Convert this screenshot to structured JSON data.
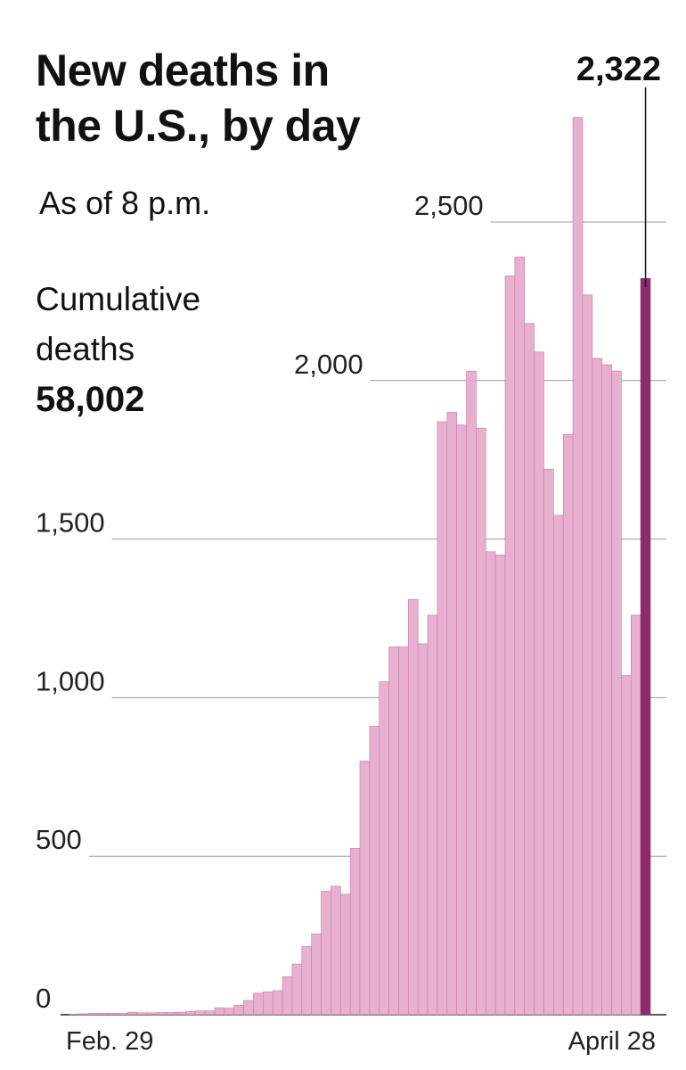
{
  "header": {
    "title_line1": "New deaths in",
    "title_line2": "the U.S., by day",
    "subtitle": "As of 8 p.m."
  },
  "summary": {
    "label_line1": "Cumulative",
    "label_line2": "deaths",
    "value": "58,002"
  },
  "colors": {
    "bar": "#e7b0cf",
    "bar_stroke": "#c77aa6",
    "highlight": "#8e2a6c",
    "grid": "#999999"
  },
  "chart_data": {
    "type": "bar",
    "title": "New deaths in the U.S., by day",
    "x_start_label": "Feb. 29",
    "x_end_label": "April 28",
    "y_ticks": [
      0,
      500,
      1000,
      1500,
      2000,
      2500
    ],
    "y_tick_labels": [
      "0",
      "500",
      "1,000",
      "1,500",
      "2,000",
      "2,500"
    ],
    "ylim": [
      0,
      2800
    ],
    "highlight_label": "2,322",
    "values": [
      2,
      3,
      5,
      5,
      5,
      4,
      8,
      6,
      6,
      7,
      7,
      8,
      10,
      12,
      12,
      22,
      21,
      30,
      45,
      68,
      72,
      76,
      120,
      160,
      215,
      255,
      390,
      405,
      380,
      525,
      800,
      910,
      1050,
      1160,
      1160,
      1310,
      1170,
      1260,
      1870,
      1900,
      1860,
      2030,
      1850,
      1460,
      1450,
      2330,
      2390,
      2180,
      2090,
      1720,
      1575,
      1830,
      2830,
      2270,
      2070,
      2050,
      2030,
      1070,
      1260,
      2322
    ]
  }
}
